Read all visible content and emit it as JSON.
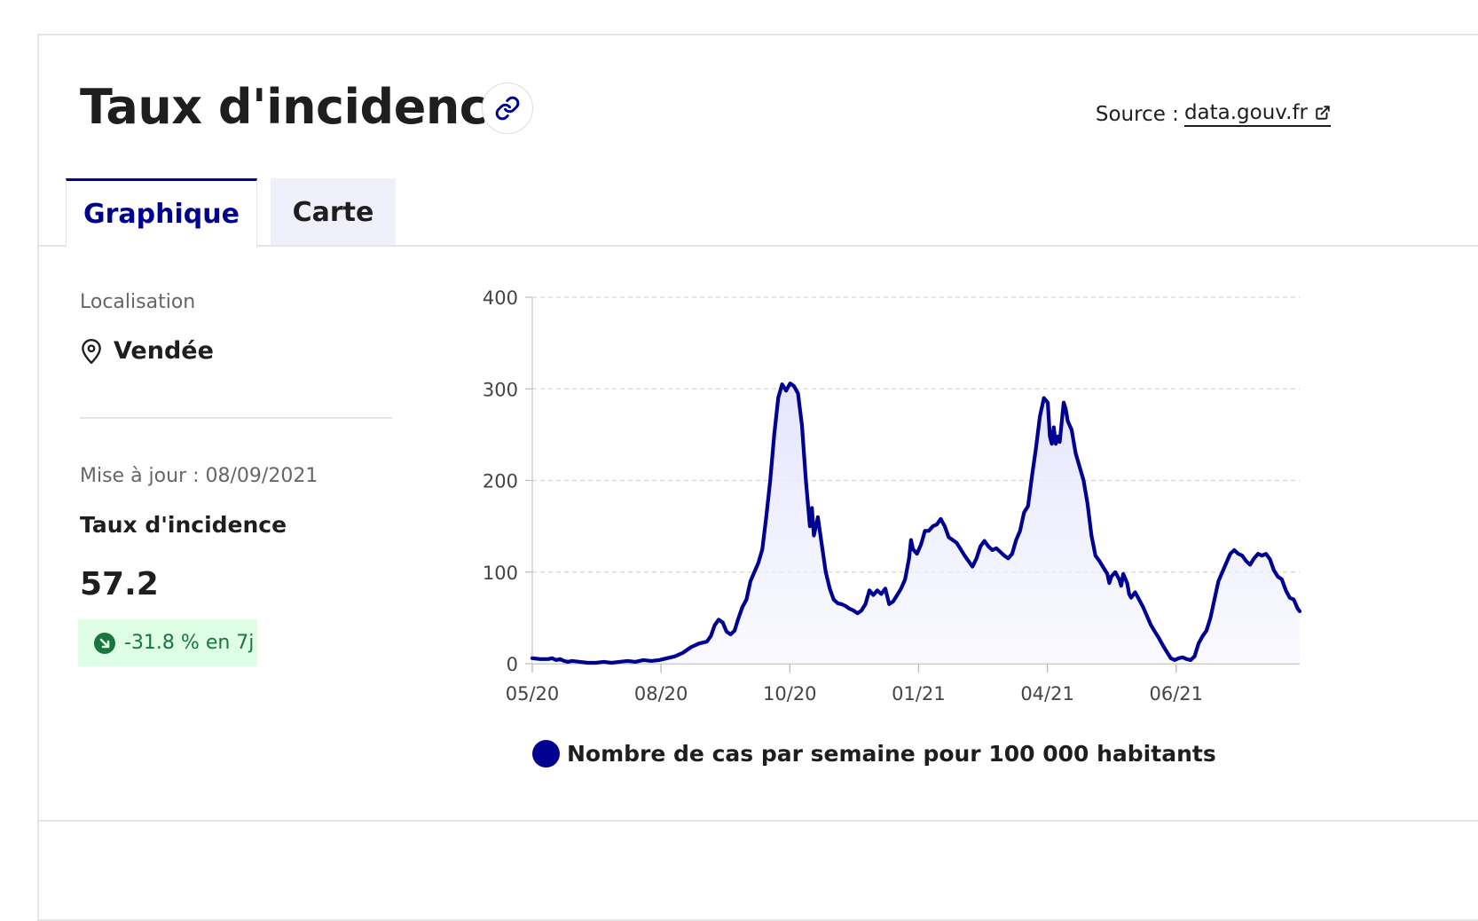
{
  "header": {
    "title": "Taux d'incidence",
    "source_label": "Source :",
    "source_link": "data.gouv.fr"
  },
  "tabs": [
    {
      "label": "Graphique",
      "active": true
    },
    {
      "label": "Carte",
      "active": false
    }
  ],
  "sidebar": {
    "location_label": "Localisation",
    "location_value": "Vendée",
    "updated": "Mise à jour : 08/09/2021",
    "metric_label": "Taux d'incidence",
    "metric_value": "57.2",
    "trend": "-31.8 % en 7j"
  },
  "colors": {
    "accent": "#000091",
    "trend_bg": "#dffee6",
    "trend_text": "#18753c"
  },
  "icons": {
    "link": "link-icon",
    "external": "external-link-icon",
    "location": "map-pin-icon",
    "trend": "arrow-down-right-icon"
  },
  "chart_data": {
    "type": "area",
    "title": "",
    "xlabel": "",
    "ylabel": "",
    "ylim": [
      0,
      400
    ],
    "yticks": [
      0,
      100,
      200,
      300,
      400
    ],
    "grid": true,
    "legend_position": "bottom",
    "xtick_labels": [
      "05/20",
      "08/20",
      "10/20",
      "01/21",
      "04/21",
      "06/21"
    ],
    "series": [
      {
        "name": "Nombre de cas par semaine pour 100 000 habitants",
        "color": "#000091",
        "points": [
          [
            0,
            6
          ],
          [
            4,
            5
          ],
          [
            8,
            5
          ],
          [
            10,
            6
          ],
          [
            12,
            4
          ],
          [
            14,
            5
          ],
          [
            16,
            3
          ],
          [
            18,
            2
          ],
          [
            20,
            3
          ],
          [
            24,
            2
          ],
          [
            28,
            1
          ],
          [
            32,
            1
          ],
          [
            36,
            2
          ],
          [
            40,
            1
          ],
          [
            44,
            2
          ],
          [
            48,
            3
          ],
          [
            52,
            2
          ],
          [
            56,
            4
          ],
          [
            60,
            3
          ],
          [
            64,
            4
          ],
          [
            68,
            6
          ],
          [
            72,
            8
          ],
          [
            76,
            12
          ],
          [
            80,
            18
          ],
          [
            84,
            22
          ],
          [
            88,
            24
          ],
          [
            90,
            30
          ],
          [
            92,
            42
          ],
          [
            94,
            48
          ],
          [
            96,
            45
          ],
          [
            98,
            35
          ],
          [
            100,
            32
          ],
          [
            102,
            36
          ],
          [
            104,
            50
          ],
          [
            106,
            62
          ],
          [
            108,
            70
          ],
          [
            110,
            90
          ],
          [
            112,
            100
          ],
          [
            114,
            110
          ],
          [
            116,
            125
          ],
          [
            118,
            160
          ],
          [
            120,
            200
          ],
          [
            122,
            250
          ],
          [
            124,
            290
          ],
          [
            126,
            305
          ],
          [
            128,
            298
          ],
          [
            130,
            306
          ],
          [
            132,
            303
          ],
          [
            134,
            295
          ],
          [
            136,
            260
          ],
          [
            138,
            200
          ],
          [
            140,
            150
          ],
          [
            141,
            170
          ],
          [
            142,
            140
          ],
          [
            144,
            160
          ],
          [
            146,
            130
          ],
          [
            148,
            100
          ],
          [
            150,
            82
          ],
          [
            152,
            70
          ],
          [
            154,
            66
          ],
          [
            156,
            65
          ],
          [
            158,
            63
          ],
          [
            160,
            60
          ],
          [
            162,
            58
          ],
          [
            164,
            55
          ],
          [
            166,
            58
          ],
          [
            168,
            65
          ],
          [
            170,
            80
          ],
          [
            172,
            75
          ],
          [
            174,
            80
          ],
          [
            176,
            76
          ],
          [
            178,
            82
          ],
          [
            180,
            65
          ],
          [
            182,
            68
          ],
          [
            184,
            75
          ],
          [
            186,
            82
          ],
          [
            188,
            92
          ],
          [
            190,
            115
          ],
          [
            191,
            135
          ],
          [
            192,
            125
          ],
          [
            194,
            120
          ],
          [
            196,
            130
          ],
          [
            198,
            145
          ],
          [
            200,
            145
          ],
          [
            202,
            150
          ],
          [
            204,
            152
          ],
          [
            206,
            158
          ],
          [
            208,
            150
          ],
          [
            210,
            138
          ],
          [
            212,
            135
          ],
          [
            214,
            132
          ],
          [
            216,
            125
          ],
          [
            218,
            118
          ],
          [
            220,
            112
          ],
          [
            222,
            106
          ],
          [
            224,
            115
          ],
          [
            226,
            128
          ],
          [
            228,
            134
          ],
          [
            230,
            128
          ],
          [
            232,
            124
          ],
          [
            234,
            126
          ],
          [
            236,
            122
          ],
          [
            238,
            118
          ],
          [
            240,
            115
          ],
          [
            242,
            120
          ],
          [
            244,
            135
          ],
          [
            246,
            145
          ],
          [
            248,
            165
          ],
          [
            250,
            172
          ],
          [
            252,
            205
          ],
          [
            254,
            235
          ],
          [
            256,
            270
          ],
          [
            258,
            290
          ],
          [
            260,
            285
          ],
          [
            261,
            248
          ],
          [
            262,
            240
          ],
          [
            263,
            258
          ],
          [
            264,
            240
          ],
          [
            265,
            248
          ],
          [
            266,
            242
          ],
          [
            268,
            285
          ],
          [
            269,
            278
          ],
          [
            270,
            265
          ],
          [
            272,
            255
          ],
          [
            274,
            230
          ],
          [
            276,
            215
          ],
          [
            278,
            200
          ],
          [
            280,
            175
          ],
          [
            282,
            140
          ],
          [
            284,
            118
          ],
          [
            286,
            112
          ],
          [
            288,
            105
          ],
          [
            290,
            98
          ],
          [
            291,
            88
          ],
          [
            292,
            95
          ],
          [
            294,
            100
          ],
          [
            296,
            92
          ],
          [
            297,
            85
          ],
          [
            298,
            98
          ],
          [
            300,
            88
          ],
          [
            301,
            76
          ],
          [
            302,
            72
          ],
          [
            304,
            78
          ],
          [
            306,
            70
          ],
          [
            308,
            62
          ],
          [
            310,
            52
          ],
          [
            312,
            42
          ],
          [
            314,
            35
          ],
          [
            316,
            28
          ],
          [
            318,
            20
          ],
          [
            320,
            13
          ],
          [
            322,
            6
          ],
          [
            324,
            4
          ],
          [
            326,
            6
          ],
          [
            328,
            7
          ],
          [
            330,
            5
          ],
          [
            332,
            4
          ],
          [
            334,
            8
          ],
          [
            336,
            22
          ],
          [
            338,
            30
          ],
          [
            340,
            36
          ],
          [
            342,
            50
          ],
          [
            344,
            70
          ],
          [
            346,
            90
          ],
          [
            348,
            100
          ],
          [
            350,
            110
          ],
          [
            352,
            120
          ],
          [
            354,
            124
          ],
          [
            356,
            120
          ],
          [
            358,
            118
          ],
          [
            360,
            112
          ],
          [
            362,
            108
          ],
          [
            364,
            115
          ],
          [
            366,
            120
          ],
          [
            368,
            118
          ],
          [
            370,
            120
          ],
          [
            372,
            114
          ],
          [
            374,
            102
          ],
          [
            376,
            95
          ],
          [
            378,
            92
          ],
          [
            380,
            80
          ],
          [
            382,
            72
          ],
          [
            384,
            70
          ],
          [
            386,
            60
          ],
          [
            387,
            57.2
          ]
        ]
      }
    ]
  }
}
